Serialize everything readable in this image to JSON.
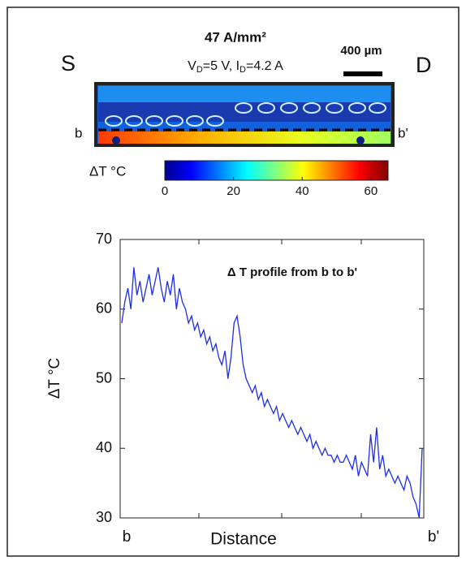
{
  "header": {
    "title": "47 A/mm²",
    "subtitle_parts": [
      "V",
      "D",
      "=5 V,  I",
      "D",
      "=4.2 A"
    ],
    "source": "S",
    "drain": "D",
    "scale_bar": "400 µm",
    "cut_start": "b",
    "cut_end": "b'"
  },
  "colorbar": {
    "label": "ΔT °C",
    "lim": [
      0,
      65
    ],
    "ticks": [
      0,
      20,
      40,
      60
    ]
  },
  "chart_data": {
    "type": "line",
    "annotation": "Δ T profile from b to b'",
    "y_label": "ΔT °C",
    "x_label": "Distance",
    "x_end_labels": [
      "b",
      "b'"
    ],
    "color": "#1f2fe0",
    "ylim": [
      30,
      70
    ],
    "yticks": [
      30,
      40,
      50,
      60,
      70
    ],
    "values": [
      58,
      61,
      63,
      60,
      66,
      62,
      64,
      61,
      63,
      65,
      62,
      64,
      66,
      63,
      61,
      64,
      62,
      65,
      60,
      63,
      61,
      60,
      58,
      59,
      57,
      58,
      56,
      57,
      55,
      56,
      54,
      55,
      53,
      52,
      54,
      50,
      53,
      58,
      59,
      56,
      52,
      50,
      49,
      48,
      49,
      47,
      48,
      46,
      47,
      46,
      45,
      46,
      44,
      45,
      44,
      43,
      44,
      43,
      42,
      43,
      42,
      41,
      42,
      40,
      41,
      40,
      39,
      40,
      39,
      39,
      38,
      39,
      38,
      38,
      39,
      38,
      37,
      39,
      36,
      38,
      37,
      36,
      42,
      38,
      43,
      37,
      39,
      36,
      37,
      36,
      35,
      36,
      35,
      34,
      36,
      35,
      33,
      32,
      30,
      40
    ]
  }
}
